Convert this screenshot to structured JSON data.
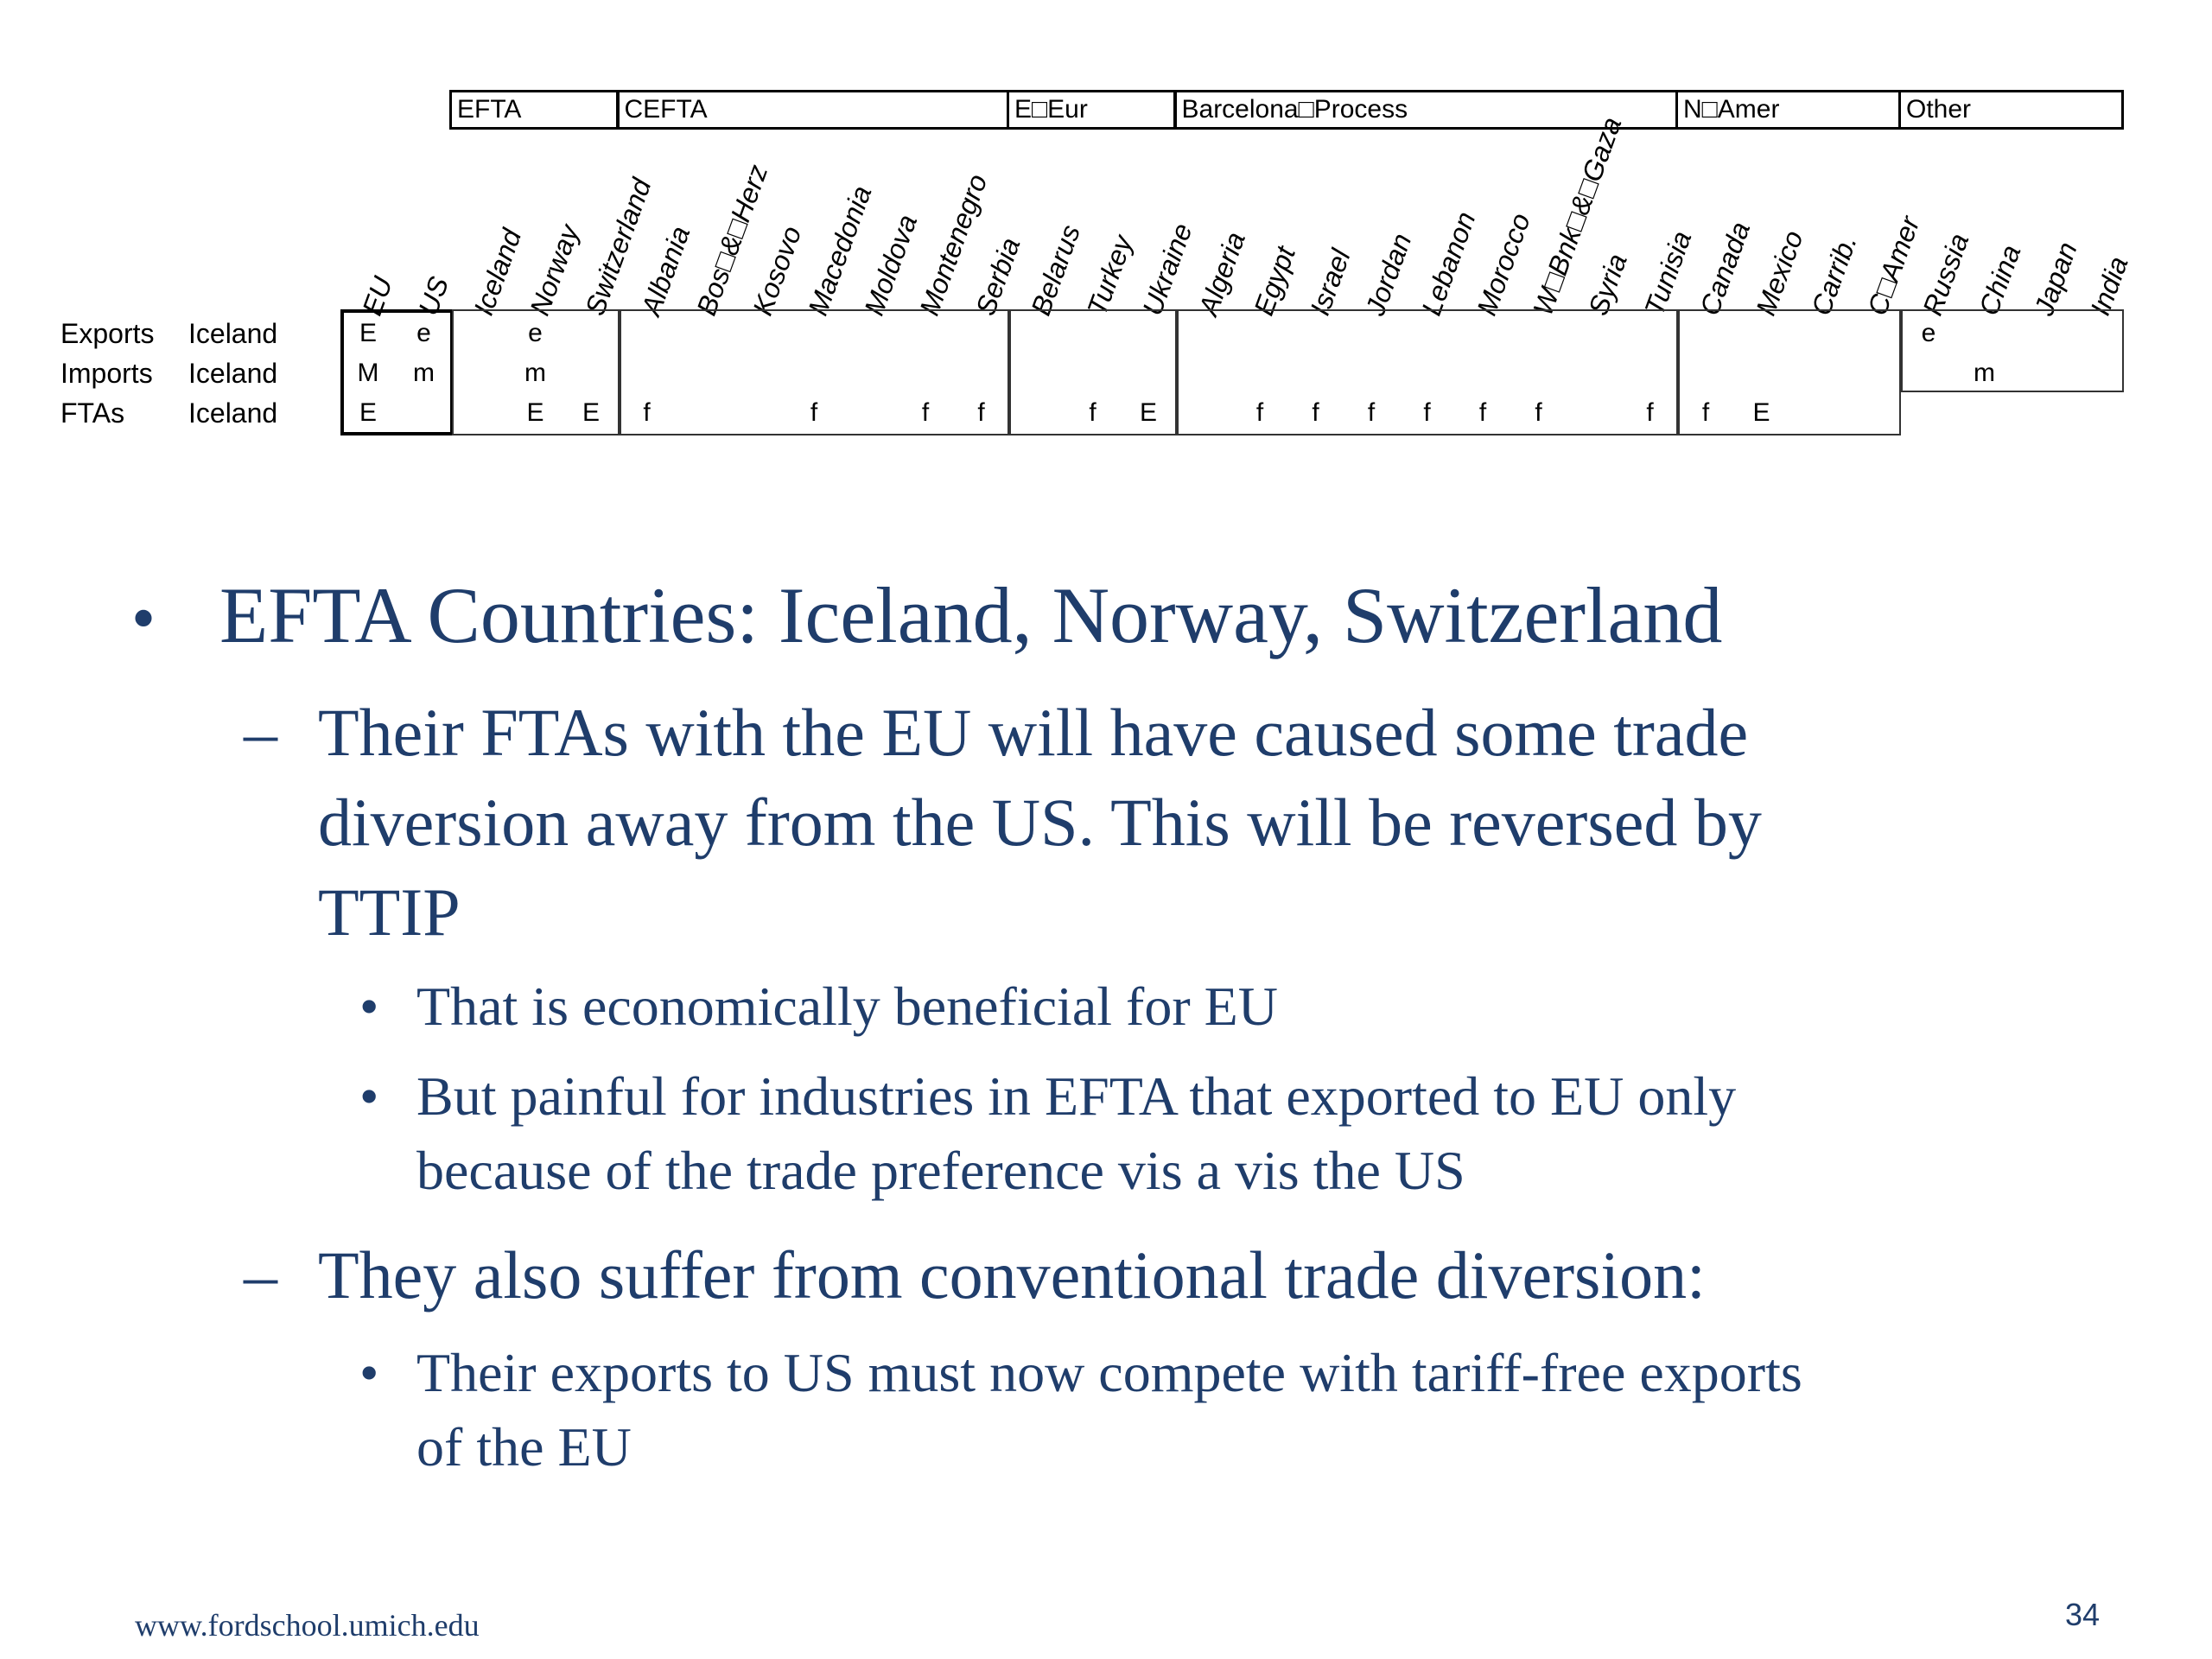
{
  "table": {
    "groups": [
      {
        "name": "",
        "label": "EFTA"
      },
      {
        "name": "",
        "label": "CEFTA"
      },
      {
        "name": "",
        "label": "E□Eur"
      },
      {
        "name": "",
        "label": "Barcelona□Process"
      },
      {
        "name": "",
        "label": "N□Amer"
      },
      {
        "name": "",
        "label": "Other"
      }
    ],
    "columns": [
      "EU",
      "US",
      "Iceland",
      "Norway",
      "Switzerland",
      "Albania",
      "Bos□&□Herz",
      "Kosovo",
      "Macedonia",
      "Moldova",
      "Montenegro",
      "Serbia",
      "Belarus",
      "Turkey",
      "Ukraine",
      "Algeria",
      "Egypt",
      "Israel",
      "Jordan",
      "Lebanon",
      "Morocco",
      "W□Bnk□&□Gaza",
      "Syria",
      "Tunisia",
      "Canada",
      "Mexico",
      "Carrib.",
      "C□Amer",
      "Russia",
      "China",
      "Japan",
      "India"
    ],
    "rows": [
      {
        "label": "Exports",
        "country": "Iceland",
        "cells": [
          "E",
          "e",
          "",
          "e",
          "",
          "",
          "",
          "",
          "",
          "",
          "",
          "",
          "",
          "",
          "",
          "",
          "",
          "",
          "",
          "",
          "",
          "",
          "",
          "",
          "",
          "",
          "",
          "",
          "e",
          "",
          "",
          ""
        ]
      },
      {
        "label": "Imports",
        "country": "Iceland",
        "cells": [
          "M",
          "m",
          "",
          "m",
          "",
          "",
          "",
          "",
          "",
          "",
          "",
          "",
          "",
          "",
          "",
          "",
          "",
          "",
          "",
          "",
          "",
          "",
          "",
          "",
          "",
          "",
          "",
          "",
          "",
          "m",
          "",
          ""
        ]
      },
      {
        "label": "FTAs",
        "country": "Iceland",
        "cells": [
          "E",
          "",
          "",
          "E",
          "E",
          "f",
          "",
          "",
          "f",
          "",
          "f",
          "f",
          "",
          "f",
          "E",
          "",
          "f",
          "f",
          "f",
          "f",
          "f",
          "f",
          "",
          "f",
          "f",
          "E",
          "",
          "",
          "",
          "",
          "",
          ""
        ]
      }
    ]
  },
  "bullets": {
    "b1": {
      "marker": "•",
      "text": "EFTA Countries:  Iceland, Norway, Switzerland"
    },
    "b2": {
      "marker": "–",
      "lines": [
        "Their FTAs with the EU will have caused some trade",
        "diversion away from the US.  This will be reversed by",
        "TTIP"
      ]
    },
    "b3": {
      "marker": "•",
      "text": "That is economically beneficial for EU"
    },
    "b4": {
      "marker": "•",
      "lines": [
        "But painful for industries in EFTA that exported to EU only",
        "because of the trade preference vis a vis the US"
      ]
    },
    "b5": {
      "marker": "–",
      "text": "They also suffer from conventional trade diversion:"
    },
    "b6": {
      "marker": "•",
      "lines": [
        "Their exports to US must now compete with tariff-free exports",
        "of the EU"
      ]
    }
  },
  "footer": {
    "url": "www.fordschool.umich.edu",
    "page": "34"
  },
  "colors": {
    "text": "#1f3d6b",
    "table": "#000000"
  }
}
